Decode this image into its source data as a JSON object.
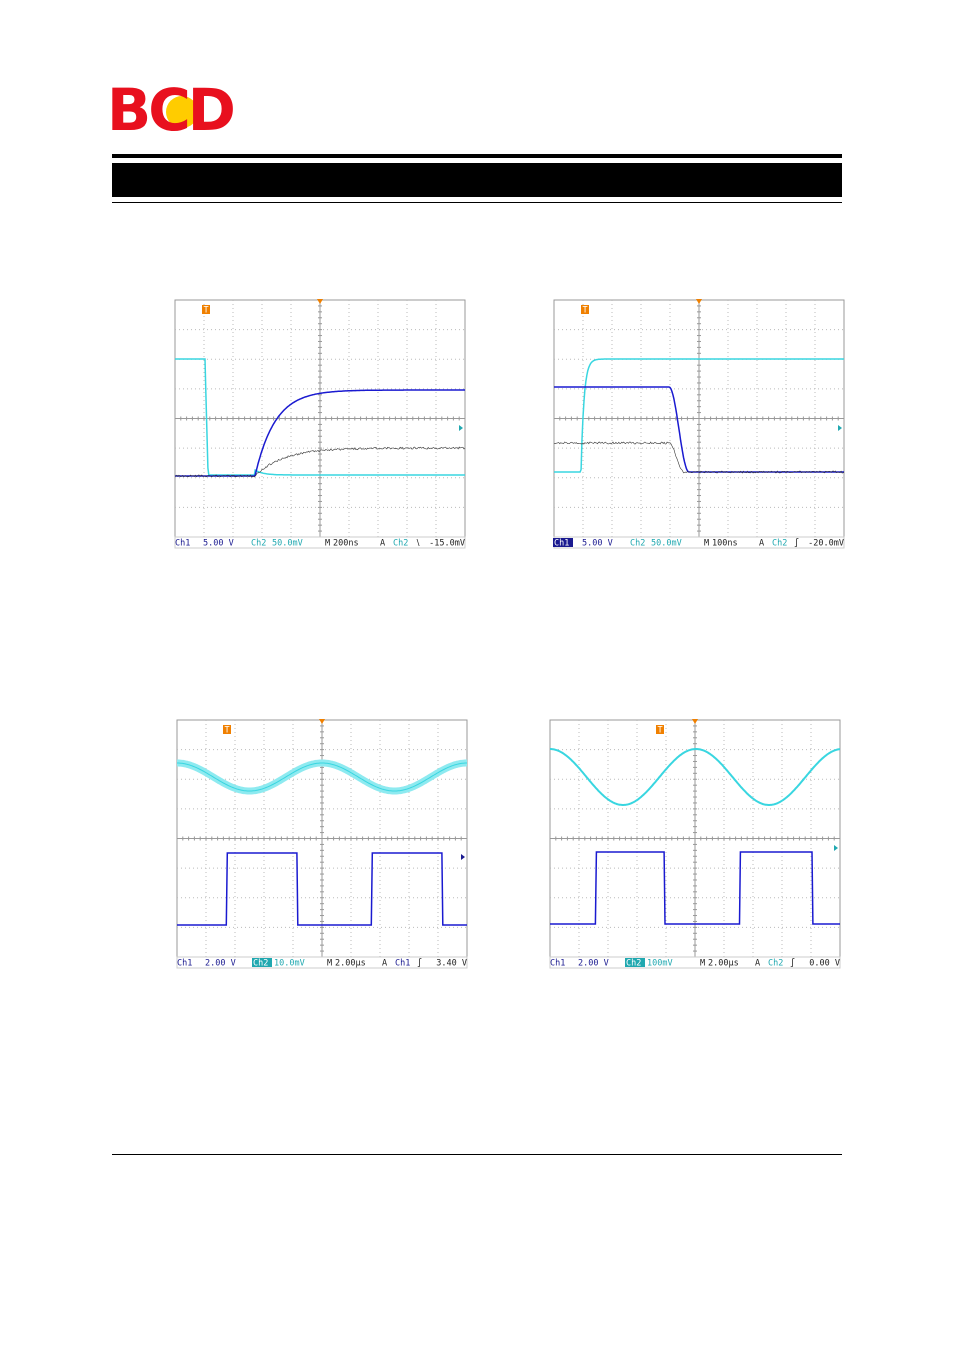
{
  "logo": "BCD",
  "scopes": [
    {
      "markers": [
        "T",
        "2",
        "1"
      ],
      "status": [
        "Ch1",
        "5.00 V",
        "Ch2",
        "50.0mV",
        "M",
        "200ns",
        "A",
        "Ch2",
        "∖",
        "-15.0mV"
      ]
    },
    {
      "markers": [
        "T",
        "2",
        "1"
      ],
      "status": [
        "Ch1",
        "5.00 V",
        "Ch2",
        "50.0mV",
        "M",
        "100ns",
        "A",
        "Ch2",
        "∫",
        "-20.0mV"
      ]
    },
    {
      "markers": [
        "T",
        "2",
        "1"
      ],
      "status": [
        "Ch1",
        "2.00 V",
        "Ch2",
        "10.0mV",
        "M",
        "2.00µs",
        "A",
        "Ch1",
        "∫",
        "3.40 V"
      ]
    },
    {
      "markers": [
        "T",
        "2",
        "1"
      ],
      "status": [
        "Ch1",
        "2.00 V",
        "Ch2",
        "100mV",
        "M",
        "2.00µs",
        "A",
        "Ch2",
        "∫",
        "0.00 V"
      ]
    }
  ]
}
